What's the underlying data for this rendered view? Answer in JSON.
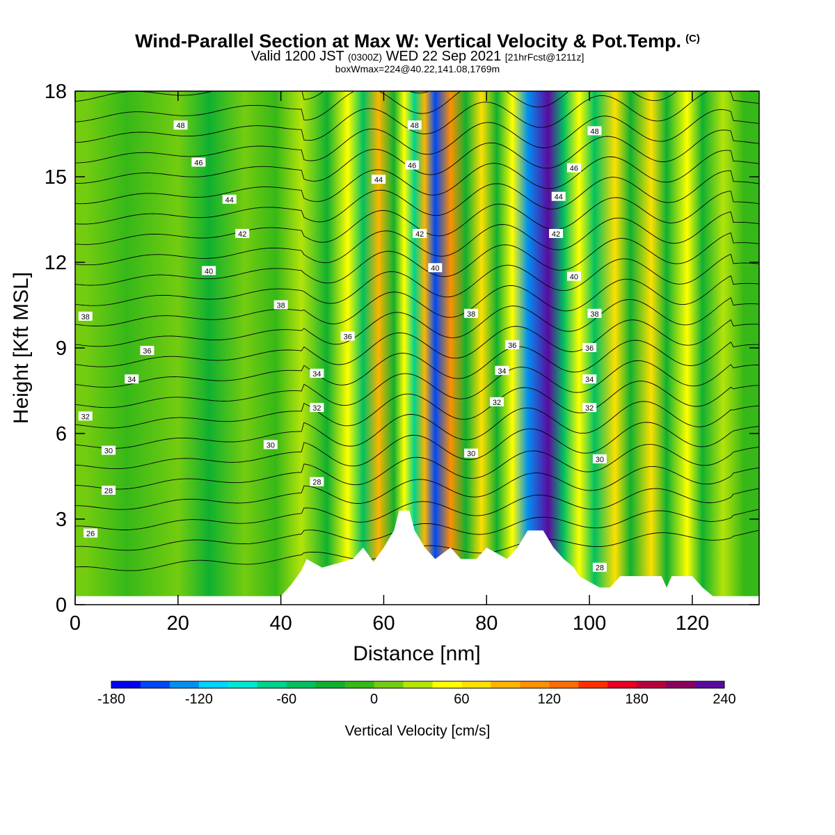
{
  "header": {
    "title": "Wind-Parallel Section at Max W: Vertical Velocity & Pot.Temp.",
    "copyright": "(C)",
    "valid_prefix": "Valid 1200 JST",
    "valid_utc": "(0300Z)",
    "valid_date": "WED 22 Sep 2021",
    "forecast_info": "[21hrFcst@1211z]",
    "box_info": "boxWmax=224@40.22,141.08,1769m"
  },
  "chart_data": {
    "type": "heatmap",
    "xlabel": "Distance [nm]",
    "ylabel": "Height [Kft MSL]",
    "xlim": [
      0,
      133
    ],
    "ylim": [
      0,
      18
    ],
    "x_ticks": [
      "0",
      "20",
      "40",
      "60",
      "80",
      "100",
      "120"
    ],
    "y_ticks": [
      "0",
      "3",
      "6",
      "9",
      "12",
      "15",
      "18"
    ],
    "colorbar": {
      "label": "Vertical Velocity [cm/s]",
      "tick_labels": [
        "-180",
        "-120",
        "-60",
        "0",
        "60",
        "120",
        "180",
        "240"
      ],
      "levels": [
        -180,
        -160,
        -140,
        -120,
        -100,
        -80,
        -60,
        -40,
        -20,
        0,
        20,
        40,
        60,
        80,
        100,
        120,
        140,
        160,
        180,
        200,
        220,
        240
      ],
      "colors": [
        "#0000ee",
        "#0048f5",
        "#0090f0",
        "#00d2ff",
        "#00e6d2",
        "#00d28c",
        "#00c060",
        "#10b030",
        "#36b818",
        "#74cc10",
        "#b4e40a",
        "#ffff00",
        "#ffe000",
        "#ffb400",
        "#ff9000",
        "#ff6e00",
        "#ff3000",
        "#e80020",
        "#b8003c",
        "#8c0060",
        "#5a0aa0"
      ]
    },
    "vertical_velocity_bands": [
      {
        "x": 2,
        "w": 0
      },
      {
        "x": 10,
        "w": -10
      },
      {
        "x": 20,
        "w": 10
      },
      {
        "x": 26,
        "w": -30
      },
      {
        "x": 33,
        "w": 10
      },
      {
        "x": 39,
        "w": -20
      },
      {
        "x": 44,
        "w": 25
      },
      {
        "x": 49,
        "w": -35
      },
      {
        "x": 53,
        "w": 40
      },
      {
        "x": 56,
        "w": -50
      },
      {
        "x": 59,
        "w": 90
      },
      {
        "x": 62,
        "w": -40
      },
      {
        "x": 64,
        "w": 50
      },
      {
        "x": 66,
        "w": -70
      },
      {
        "x": 68,
        "w": 80
      },
      {
        "x": 70,
        "w": -150
      },
      {
        "x": 73,
        "w": 100
      },
      {
        "x": 76,
        "w": -40
      },
      {
        "x": 79,
        "w": 60
      },
      {
        "x": 82,
        "w": -40
      },
      {
        "x": 85,
        "w": 50
      },
      {
        "x": 88,
        "w": -130
      },
      {
        "x": 92,
        "w": 224
      },
      {
        "x": 95,
        "w": -60
      },
      {
        "x": 98,
        "w": 40
      },
      {
        "x": 101,
        "w": -45
      },
      {
        "x": 105,
        "w": 60
      },
      {
        "x": 108,
        "w": -40
      },
      {
        "x": 112,
        "w": 60
      },
      {
        "x": 115,
        "w": -30
      },
      {
        "x": 119,
        "w": 45
      },
      {
        "x": 122,
        "w": -30
      },
      {
        "x": 126,
        "w": 30
      },
      {
        "x": 130,
        "w": -20
      }
    ],
    "terrain_kft": [
      [
        0,
        0.3
      ],
      [
        40,
        0.3
      ],
      [
        42,
        0.7
      ],
      [
        44,
        1.2
      ],
      [
        45,
        1.6
      ],
      [
        48,
        1.3
      ],
      [
        54,
        1.6
      ],
      [
        56,
        2.0
      ],
      [
        58,
        1.5
      ],
      [
        60,
        2.0
      ],
      [
        62,
        2.6
      ],
      [
        63,
        3.3
      ],
      [
        65,
        3.3
      ],
      [
        66,
        2.6
      ],
      [
        68,
        2.0
      ],
      [
        70,
        1.6
      ],
      [
        73,
        2.0
      ],
      [
        75,
        1.6
      ],
      [
        78,
        1.6
      ],
      [
        80,
        2.0
      ],
      [
        84,
        1.6
      ],
      [
        86,
        2.0
      ],
      [
        88,
        2.6
      ],
      [
        91,
        2.6
      ],
      [
        93,
        2.0
      ],
      [
        95,
        1.6
      ],
      [
        97,
        1.3
      ],
      [
        98,
        1.0
      ],
      [
        102,
        0.6
      ],
      [
        104,
        0.6
      ],
      [
        106,
        1.0
      ],
      [
        114,
        1.0
      ],
      [
        115,
        0.6
      ],
      [
        116,
        1.0
      ],
      [
        120,
        1.0
      ],
      [
        122,
        0.6
      ],
      [
        124,
        0.3
      ],
      [
        133,
        0.3
      ]
    ],
    "potential_temperature_contours_C": [
      26,
      27,
      28,
      29,
      30,
      31,
      32,
      33,
      34,
      35,
      36,
      37,
      38,
      39,
      40,
      41,
      42,
      43,
      44,
      45,
      46,
      47,
      48,
      49
    ],
    "contour_labels": [
      {
        "text": "48",
        "x": 20.5,
        "y": 16.8
      },
      {
        "text": "46",
        "x": 24,
        "y": 15.5
      },
      {
        "text": "44",
        "x": 30,
        "y": 14.2
      },
      {
        "text": "42",
        "x": 32.5,
        "y": 13.0
      },
      {
        "text": "40",
        "x": 26,
        "y": 11.7
      },
      {
        "text": "38",
        "x": 2,
        "y": 10.1
      },
      {
        "text": "38",
        "x": 40,
        "y": 10.5
      },
      {
        "text": "36",
        "x": 14,
        "y": 8.9
      },
      {
        "text": "36",
        "x": 53,
        "y": 9.4
      },
      {
        "text": "34",
        "x": 11,
        "y": 7.9
      },
      {
        "text": "34",
        "x": 47,
        "y": 8.1
      },
      {
        "text": "32",
        "x": 2,
        "y": 6.6
      },
      {
        "text": "32",
        "x": 47,
        "y": 6.9
      },
      {
        "text": "30",
        "x": 6.5,
        "y": 5.4
      },
      {
        "text": "30",
        "x": 38,
        "y": 5.6
      },
      {
        "text": "28",
        "x": 6.5,
        "y": 4.0
      },
      {
        "text": "28",
        "x": 47,
        "y": 4.3
      },
      {
        "text": "26",
        "x": 3,
        "y": 2.5
      },
      {
        "text": "48",
        "x": 66,
        "y": 16.8
      },
      {
        "text": "46",
        "x": 65.5,
        "y": 15.4
      },
      {
        "text": "44",
        "x": 59,
        "y": 14.9
      },
      {
        "text": "42",
        "x": 67,
        "y": 13.0
      },
      {
        "text": "40",
        "x": 70,
        "y": 11.8
      },
      {
        "text": "38",
        "x": 77,
        "y": 10.2
      },
      {
        "text": "36",
        "x": 85,
        "y": 9.1
      },
      {
        "text": "34",
        "x": 83,
        "y": 8.2
      },
      {
        "text": "32",
        "x": 82,
        "y": 7.1
      },
      {
        "text": "30",
        "x": 77,
        "y": 5.3
      },
      {
        "text": "48",
        "x": 101,
        "y": 16.6
      },
      {
        "text": "46",
        "x": 97,
        "y": 15.3
      },
      {
        "text": "44",
        "x": 94,
        "y": 14.3
      },
      {
        "text": "42",
        "x": 93.5,
        "y": 13.0
      },
      {
        "text": "40",
        "x": 97,
        "y": 11.5
      },
      {
        "text": "38",
        "x": 101,
        "y": 10.2
      },
      {
        "text": "36",
        "x": 100,
        "y": 9.0
      },
      {
        "text": "34",
        "x": 100,
        "y": 7.9
      },
      {
        "text": "32",
        "x": 100,
        "y": 6.9
      },
      {
        "text": "30",
        "x": 102,
        "y": 5.1
      },
      {
        "text": "28",
        "x": 102,
        "y": 1.3
      }
    ]
  }
}
